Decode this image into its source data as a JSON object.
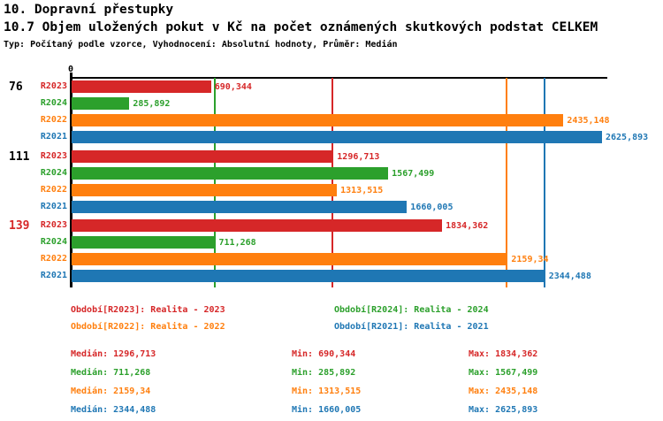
{
  "header": {
    "title": "10. Dopravní přestupky",
    "subtitle": "10.7 Objem uložených pokut v Kč na počet oznámených skutkových podstat CELKEM",
    "meta": "Typ: Počítaný podle vzorce, Vyhodnocení: Absolutní hodnoty, Průměr: Medián"
  },
  "colors": {
    "R2023": "#d62728",
    "R2024": "#2ca02c",
    "R2022": "#ff7f0e",
    "R2021": "#1f77b4",
    "axis": "#000000",
    "background": "#ffffff"
  },
  "chart_data": {
    "type": "bar",
    "orientation": "horizontal",
    "x_axis_origin_label": "0",
    "x_max_value": 2625.893,
    "grid": "median-lines-per-series",
    "categories": [
      "76",
      "111",
      "139"
    ],
    "series": [
      {
        "key": "R2023",
        "name": "Realita - 2023",
        "color": "#d62728",
        "median": 1296.713,
        "min": 690.344,
        "max": 1834.362
      },
      {
        "key": "R2024",
        "name": "Realita - 2024",
        "color": "#2ca02c",
        "median": 711.268,
        "min": 285.892,
        "max": 1567.499
      },
      {
        "key": "R2022",
        "name": "Realita - 2022",
        "color": "#ff7f0e",
        "median": 2159.34,
        "min": 1313.515,
        "max": 2435.148
      },
      {
        "key": "R2021",
        "name": "Realita - 2021",
        "color": "#1f77b4",
        "median": 2344.488,
        "min": 1660.005,
        "max": 2625.893
      }
    ],
    "groups": [
      {
        "label": "76",
        "label_color": "#000000",
        "bars": [
          {
            "series": "R2023",
            "value": 690.344,
            "value_label": "690,344"
          },
          {
            "series": "R2024",
            "value": 285.892,
            "value_label": "285,892"
          },
          {
            "series": "R2022",
            "value": 2435.148,
            "value_label": "2435,148"
          },
          {
            "series": "R2021",
            "value": 2625.893,
            "value_label": "2625,893"
          }
        ]
      },
      {
        "label": "111",
        "label_color": "#000000",
        "bars": [
          {
            "series": "R2023",
            "value": 1296.713,
            "value_label": "1296,713"
          },
          {
            "series": "R2024",
            "value": 1567.499,
            "value_label": "1567,499"
          },
          {
            "series": "R2022",
            "value": 1313.515,
            "value_label": "1313,515"
          },
          {
            "series": "R2021",
            "value": 1660.005,
            "value_label": "1660,005"
          }
        ]
      },
      {
        "label": "139",
        "label_color": "#d62728",
        "bars": [
          {
            "series": "R2023",
            "value": 1834.362,
            "value_label": "1834,362"
          },
          {
            "series": "R2024",
            "value": 711.268,
            "value_label": "711,268"
          },
          {
            "series": "R2022",
            "value": 2159.34,
            "value_label": "2159,34"
          },
          {
            "series": "R2021",
            "value": 2344.488,
            "value_label": "2344,488"
          }
        ]
      }
    ]
  },
  "legend": {
    "items": [
      {
        "label": "Období[R2023]: Realita - 2023",
        "series": "R2023",
        "row": 0,
        "col": 0
      },
      {
        "label": "Období[R2024]: Realita - 2024",
        "series": "R2024",
        "row": 0,
        "col": 1
      },
      {
        "label": "Období[R2022]: Realita - 2022",
        "series": "R2022",
        "row": 1,
        "col": 0
      },
      {
        "label": "Období[R2021]: Realita - 2021",
        "series": "R2021",
        "row": 1,
        "col": 1
      }
    ]
  },
  "stats": {
    "rows": [
      {
        "series": "R2023",
        "median_label": "Medián: 1296,713",
        "min_label": "Min: 690,344",
        "max_label": "Max: 1834,362"
      },
      {
        "series": "R2024",
        "median_label": "Medián: 711,268",
        "min_label": "Min: 285,892",
        "max_label": "Max: 1567,499"
      },
      {
        "series": "R2022",
        "median_label": "Medián: 2159,34",
        "min_label": "Min: 1313,515",
        "max_label": "Max: 2435,148"
      },
      {
        "series": "R2021",
        "median_label": "Medián: 2344,488",
        "min_label": "Min: 1660,005",
        "max_label": "Max: 2625,893"
      }
    ]
  }
}
